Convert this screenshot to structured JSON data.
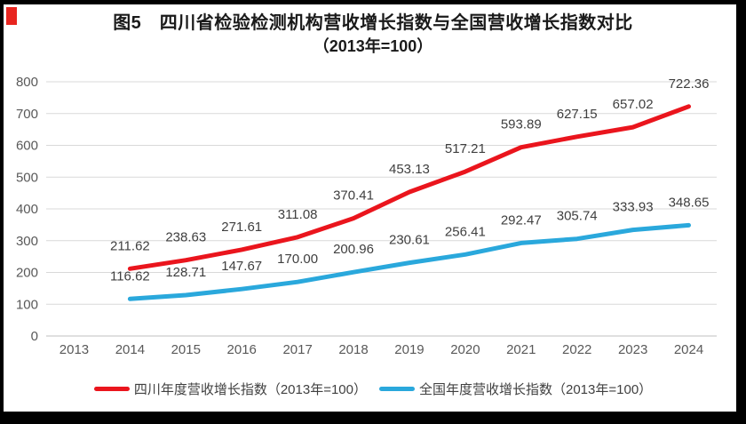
{
  "page": {
    "background": "#ffffff",
    "frame_color": "#000000",
    "corner_marker_color": "#e8251f"
  },
  "title": {
    "line1": "图5　四川省检验检测机构营收增长指数与全国营收增长指数对比",
    "line2": "（2013年=100）"
  },
  "chart_data": {
    "type": "line",
    "title": "四川省检验检测机构营收增长指数与全国营收增长指数对比（2013年=100）",
    "categories": [
      "2013",
      "2014",
      "2015",
      "2016",
      "2017",
      "2018",
      "2019",
      "2020",
      "2021",
      "2022",
      "2023",
      "2024"
    ],
    "ylim": [
      0,
      800
    ],
    "yticks": [
      0,
      100,
      200,
      300,
      400,
      500,
      600,
      700,
      800
    ],
    "grid": true,
    "legend_position": "bottom",
    "gridline_color": "#d9d9d9",
    "axis_line_color": "#bfbfbf",
    "axis_tick_color": "#595959",
    "data_label_color": "#3f3f3f",
    "series": [
      {
        "id": "sichuan",
        "name": "四川年度营收增长指数（2013年=100）",
        "color": "#ea151d",
        "start_index": 1,
        "values": [
          211.62,
          238.63,
          271.61,
          311.08,
          370.41,
          453.13,
          517.21,
          593.89,
          627.15,
          657.02,
          722.36
        ],
        "labels": [
          "211.62",
          "238.63",
          "271.61",
          "311.08",
          "370.41",
          "453.13",
          "517.21",
          "593.89",
          "627.15",
          "657.02",
          "722.36"
        ]
      },
      {
        "id": "national",
        "name": "全国年度营收增长指数（2013年=100）",
        "color": "#2aa8dc",
        "start_index": 1,
        "values": [
          116.62,
          128.71,
          147.67,
          170.0,
          200.96,
          230.61,
          256.41,
          292.47,
          305.74,
          333.93,
          348.65
        ],
        "labels": [
          "116.62",
          "128.71",
          "147.67",
          "170.00",
          "200.96",
          "230.61",
          "256.41",
          "292.47",
          "305.74",
          "333.93",
          "348.65"
        ]
      }
    ]
  }
}
